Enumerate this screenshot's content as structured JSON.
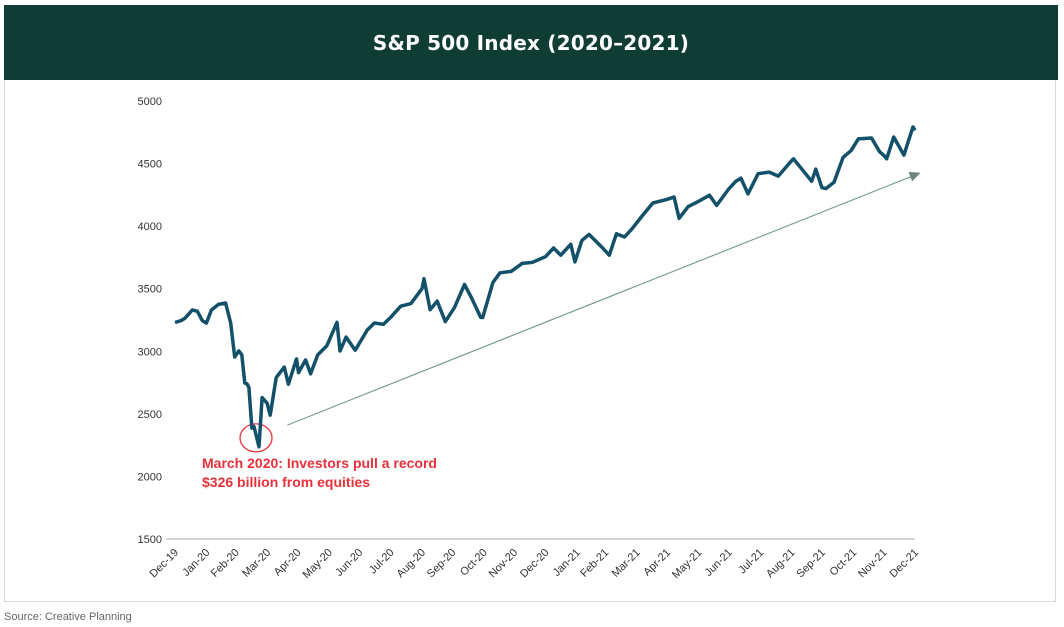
{
  "header": {
    "title": "S&P 500 Index (2020–2021)"
  },
  "source": "Source: Creative Planning",
  "chart_data": {
    "type": "line",
    "title": "S&P 500 Index (2020–2021)",
    "xlabel": "",
    "ylabel": "",
    "ylim": [
      1500,
      5000
    ],
    "yticks": [
      1500,
      2000,
      2500,
      3000,
      3500,
      4000,
      4500,
      5000
    ],
    "xtick_labels": [
      "Dec-19",
      "Jan-20",
      "Feb-20",
      "Mar-20",
      "Apr-20",
      "May-20",
      "Jun-20",
      "Jul-20",
      "Aug-20",
      "Sep-20",
      "Oct-20",
      "Nov-20",
      "Dec-20",
      "Jan-21",
      "Feb-21",
      "Mar-21",
      "Apr-21",
      "May-21",
      "Jun-21",
      "Jul-21",
      "Aug-21",
      "Sep-21",
      "Oct-21",
      "Nov-21",
      "Dec-21"
    ],
    "xtick_dates": [
      "2019-12-31",
      "2020-01-31",
      "2020-02-29",
      "2020-03-31",
      "2020-04-30",
      "2020-05-31",
      "2020-06-30",
      "2020-07-31",
      "2020-08-31",
      "2020-09-30",
      "2020-10-31",
      "2020-11-30",
      "2020-12-31",
      "2021-01-31",
      "2021-02-28",
      "2021-03-31",
      "2021-04-30",
      "2021-05-31",
      "2021-06-30",
      "2021-07-31",
      "2021-08-31",
      "2021-09-30",
      "2021-10-31",
      "2021-11-30",
      "2021-12-31"
    ],
    "grid": false,
    "line_color": "#13506a",
    "series": [
      {
        "x": [
          "2019-12-31",
          "2020-01-06",
          "2020-01-10",
          "2020-01-17",
          "2020-01-22",
          "2020-01-27",
          "2020-01-31",
          "2020-02-05",
          "2020-02-12",
          "2020-02-19",
          "2020-02-24",
          "2020-02-28",
          "2020-03-03",
          "2020-03-06",
          "2020-03-09",
          "2020-03-11",
          "2020-03-13",
          "2020-03-16",
          "2020-03-18",
          "2020-03-23",
          "2020-03-26",
          "2020-03-31",
          "2020-04-03",
          "2020-04-09",
          "2020-04-17",
          "2020-04-21",
          "2020-04-29",
          "2020-05-01",
          "2020-05-08",
          "2020-05-13",
          "2020-05-20",
          "2020-05-29",
          "2020-06-08",
          "2020-06-11",
          "2020-06-17",
          "2020-06-26",
          "2020-07-08",
          "2020-07-15",
          "2020-07-24",
          "2020-07-31",
          "2020-08-10",
          "2020-08-20",
          "2020-08-31",
          "2020-09-02",
          "2020-09-08",
          "2020-09-15",
          "2020-09-23",
          "2020-10-02",
          "2020-10-12",
          "2020-10-19",
          "2020-10-28",
          "2020-10-30",
          "2020-11-09",
          "2020-11-16",
          "2020-11-27",
          "2020-12-08",
          "2020-12-18",
          "2020-12-31",
          "2021-01-08",
          "2021-01-15",
          "2021-01-25",
          "2021-01-29",
          "2021-02-05",
          "2021-02-12",
          "2021-02-25",
          "2021-03-04",
          "2021-03-11",
          "2021-03-19",
          "2021-03-26",
          "2021-04-05",
          "2021-04-16",
          "2021-04-29",
          "2021-05-07",
          "2021-05-12",
          "2021-05-21",
          "2021-06-01",
          "2021-06-11",
          "2021-06-18",
          "2021-06-30",
          "2021-07-07",
          "2021-07-12",
          "2021-07-19",
          "2021-07-29",
          "2021-08-09",
          "2021-08-18",
          "2021-08-31",
          "2021-09-02",
          "2021-09-10",
          "2021-09-20",
          "2021-09-24",
          "2021-09-30",
          "2021-10-04",
          "2021-10-12",
          "2021-10-21",
          "2021-10-29",
          "2021-11-05",
          "2021-11-18",
          "2021-11-26",
          "2021-11-30",
          "2021-12-03",
          "2021-12-10",
          "2021-12-20",
          "2021-12-29",
          "2021-12-31"
        ],
        "y": [
          3230,
          3245,
          3265,
          3330,
          3320,
          3245,
          3225,
          3330,
          3375,
          3386,
          3225,
          2954,
          3003,
          2972,
          2746,
          2741,
          2711,
          2386,
          2398,
          2237,
          2630,
          2585,
          2489,
          2790,
          2874,
          2737,
          2939,
          2830,
          2930,
          2820,
          2971,
          3044,
          3232,
          3002,
          3113,
          3009,
          3170,
          3226,
          3216,
          3271,
          3360,
          3381,
          3500,
          3580,
          3332,
          3401,
          3237,
          3348,
          3534,
          3426,
          3271,
          3270,
          3550,
          3627,
          3638,
          3702,
          3710,
          3756,
          3825,
          3768,
          3855,
          3714,
          3886,
          3934,
          3829,
          3768,
          3939,
          3913,
          3975,
          4077,
          4185,
          4211,
          4232,
          4063,
          4156,
          4202,
          4247,
          4166,
          4297,
          4358,
          4384,
          4258,
          4419,
          4432,
          4400,
          4522,
          4537,
          4458,
          4358,
          4455,
          4307,
          4300,
          4350,
          4549,
          4605,
          4697,
          4704,
          4595,
          4567,
          4538,
          4712,
          4568,
          4793,
          4766
        ]
      }
    ],
    "annotations": [
      {
        "type": "text",
        "text": "March 2020: Investors pull a record $326 billion from equities",
        "lines": [
          "March 2020: Investors pull a record",
          "$326 billion from equities"
        ],
        "color": "#e8313a"
      },
      {
        "type": "circle",
        "date": "2020-03-23",
        "value": 2300,
        "color": "#e8313a"
      },
      {
        "type": "arrow",
        "from": {
          "date": "2020-04-20",
          "value": 2410
        },
        "to": {
          "date": "2021-12-31",
          "value": 4410
        },
        "color": "#7a9e92"
      }
    ]
  }
}
